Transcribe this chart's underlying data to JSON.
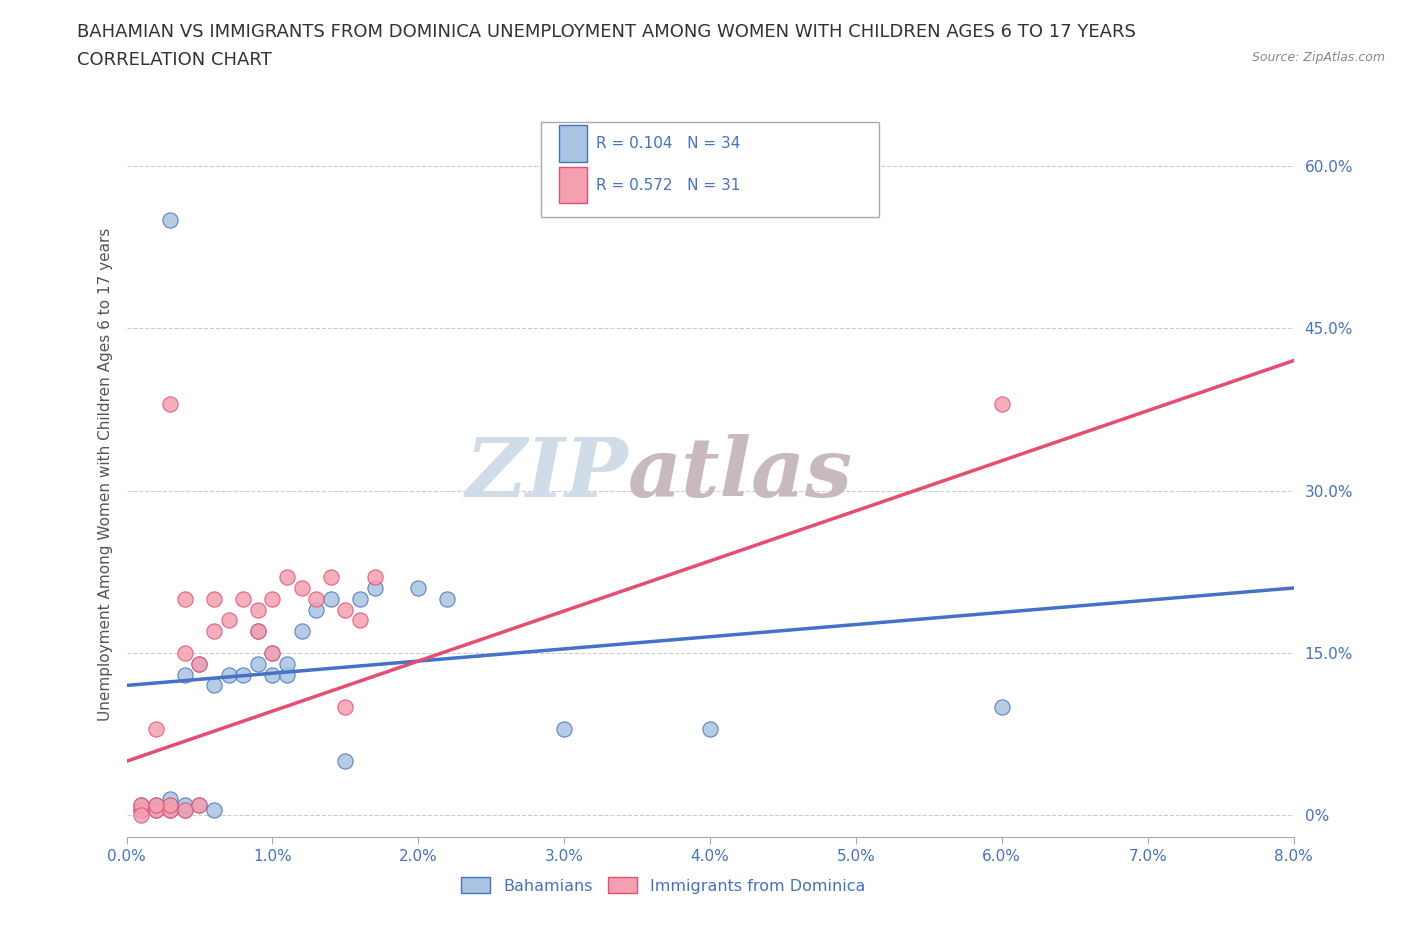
{
  "title_line1": "BAHAMIAN VS IMMIGRANTS FROM DOMINICA UNEMPLOYMENT AMONG WOMEN WITH CHILDREN AGES 6 TO 17 YEARS",
  "title_line2": "CORRELATION CHART",
  "source_text": "Source: ZipAtlas.com",
  "xlabel_ticks": [
    "0.0%",
    "1.0%",
    "2.0%",
    "3.0%",
    "4.0%",
    "5.0%",
    "6.0%",
    "7.0%",
    "8.0%"
  ],
  "ylabel_ticks": [
    "0%",
    "15.0%",
    "30.0%",
    "45.0%",
    "60.0%"
  ],
  "ylabel_label": "Unemployment Among Women with Children Ages 6 to 17 years",
  "xlim": [
    0.0,
    0.08
  ],
  "ylim": [
    -0.02,
    0.65
  ],
  "watermark_zip": "ZIP",
  "watermark_atlas": "atlas",
  "legend_entries": [
    {
      "label": "Bahamians",
      "R": "0.104",
      "N": "34",
      "color": "#a8c4e0"
    },
    {
      "label": "Immigrants from Dominica",
      "R": "0.572",
      "N": "31",
      "color": "#f4a0b0"
    }
  ],
  "bahamian_scatter": [
    [
      0.001,
      0.005
    ],
    [
      0.001,
      0.01
    ],
    [
      0.002,
      0.005
    ],
    [
      0.002,
      0.01
    ],
    [
      0.003,
      0.005
    ],
    [
      0.003,
      0.01
    ],
    [
      0.003,
      0.015
    ],
    [
      0.003,
      0.55
    ],
    [
      0.004,
      0.005
    ],
    [
      0.004,
      0.01
    ],
    [
      0.004,
      0.13
    ],
    [
      0.005,
      0.01
    ],
    [
      0.005,
      0.14
    ],
    [
      0.006,
      0.005
    ],
    [
      0.006,
      0.12
    ],
    [
      0.007,
      0.13
    ],
    [
      0.008,
      0.13
    ],
    [
      0.009,
      0.14
    ],
    [
      0.009,
      0.17
    ],
    [
      0.01,
      0.13
    ],
    [
      0.01,
      0.15
    ],
    [
      0.011,
      0.13
    ],
    [
      0.011,
      0.14
    ],
    [
      0.012,
      0.17
    ],
    [
      0.013,
      0.19
    ],
    [
      0.014,
      0.2
    ],
    [
      0.015,
      0.05
    ],
    [
      0.016,
      0.2
    ],
    [
      0.017,
      0.21
    ],
    [
      0.02,
      0.21
    ],
    [
      0.022,
      0.2
    ],
    [
      0.03,
      0.08
    ],
    [
      0.04,
      0.08
    ],
    [
      0.06,
      0.1
    ]
  ],
  "dominica_scatter": [
    [
      0.001,
      0.005
    ],
    [
      0.001,
      0.01
    ],
    [
      0.002,
      0.005
    ],
    [
      0.003,
      0.005
    ],
    [
      0.003,
      0.01
    ],
    [
      0.003,
      0.38
    ],
    [
      0.004,
      0.005
    ],
    [
      0.004,
      0.15
    ],
    [
      0.004,
      0.2
    ],
    [
      0.005,
      0.01
    ],
    [
      0.005,
      0.14
    ],
    [
      0.006,
      0.17
    ],
    [
      0.006,
      0.2
    ],
    [
      0.007,
      0.18
    ],
    [
      0.008,
      0.2
    ],
    [
      0.009,
      0.17
    ],
    [
      0.009,
      0.19
    ],
    [
      0.01,
      0.15
    ],
    [
      0.01,
      0.2
    ],
    [
      0.011,
      0.22
    ],
    [
      0.012,
      0.21
    ],
    [
      0.013,
      0.2
    ],
    [
      0.014,
      0.22
    ],
    [
      0.015,
      0.1
    ],
    [
      0.015,
      0.19
    ],
    [
      0.016,
      0.18
    ],
    [
      0.017,
      0.22
    ],
    [
      0.06,
      0.38
    ],
    [
      0.002,
      0.01
    ],
    [
      0.001,
      0.0
    ],
    [
      0.002,
      0.08
    ]
  ],
  "bahamian_line_color": "#4472c4",
  "dominica_line_color": "#e84d6f",
  "bahamian_scatter_color": "#a8c4e0",
  "dominica_scatter_color": "#f4a0b0",
  "grid_color": "#cccccc",
  "background_color": "#ffffff",
  "title_fontsize": 13,
  "subtitle_fontsize": 13,
  "axis_label_fontsize": 11,
  "tick_fontsize": 11,
  "watermark_color": "#d0dce8",
  "watermark_color2": "#c8b8c0"
}
